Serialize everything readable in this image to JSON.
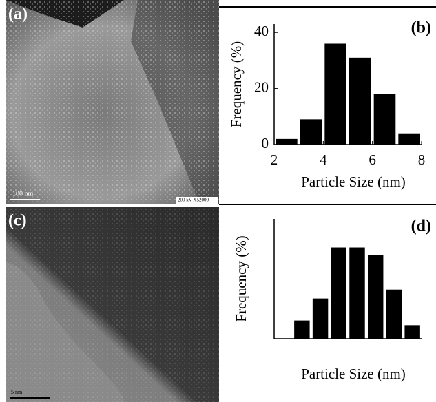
{
  "panels": {
    "a": {
      "label": "(a)",
      "scale_bar": "100 nm",
      "info": "200 kV X52000"
    },
    "c": {
      "label": "(c)",
      "scale_bar": "5 nm"
    }
  },
  "chart_data": [
    {
      "type": "histogram",
      "panel_label": "(b)",
      "xlabel": "Particle Size (nm)",
      "ylabel": "Frequency (%)",
      "bins": [
        2,
        3,
        4,
        5,
        6,
        7,
        8
      ],
      "values": [
        2,
        9,
        36,
        31,
        18,
        4
      ],
      "color": "#000000",
      "xlim": [
        2,
        8
      ],
      "xticks": [
        2,
        4,
        6,
        8
      ],
      "ylim": [
        0,
        43
      ],
      "yticks": [
        0,
        20,
        40
      ]
    },
    {
      "type": "bar",
      "panel_label": "(d)",
      "xlabel": "Particle Size (nm)",
      "ylabel": "Frequency (%)",
      "categories": [
        null,
        null,
        null,
        null,
        null,
        null,
        null
      ],
      "values": [
        4.7,
        10.4,
        23.6,
        23.6,
        21.6,
        12.7,
        3.5
      ],
      "color": "#000000",
      "ylim": [
        0,
        31
      ]
    }
  ]
}
